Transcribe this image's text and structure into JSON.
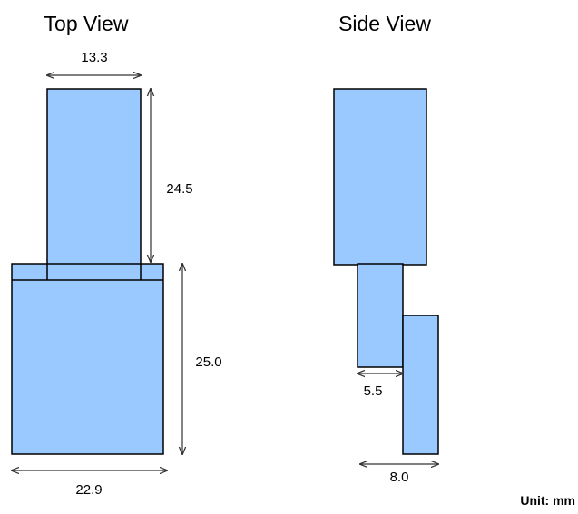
{
  "top_view": {
    "title": "Top View",
    "width_top": "13.3",
    "height_top": "24.5",
    "height_bottom": "25.0",
    "width_bottom": "22.9"
  },
  "side_view": {
    "title": "Side View",
    "step_width": "5.5",
    "foot_width": "8.0"
  },
  "unit_label": "Unit: mm",
  "colors": {
    "part_fill": "#99c9ff",
    "outline": "#000000"
  }
}
